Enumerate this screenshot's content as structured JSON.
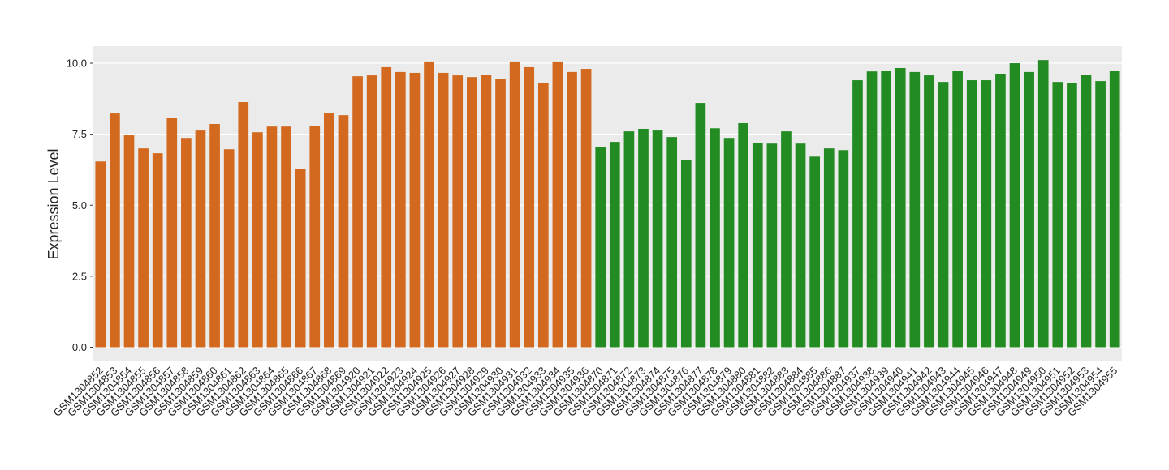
{
  "chart_data": {
    "type": "bar",
    "y_label": "Expression Level",
    "categories": [
      "GSM1304852",
      "GSM1304853",
      "GSM1304854",
      "GSM1304855",
      "GSM1304856",
      "GSM1304857",
      "GSM1304858",
      "GSM1304859",
      "GSM1304860",
      "GSM1304861",
      "GSM1304862",
      "GSM1304863",
      "GSM1304864",
      "GSM1304865",
      "GSM1304866",
      "GSM1304867",
      "GSM1304868",
      "GSM1304869",
      "GSM1304920",
      "GSM1304921",
      "GSM1304922",
      "GSM1304923",
      "GSM1304924",
      "GSM1304925",
      "GSM1304926",
      "GSM1304927",
      "GSM1304928",
      "GSM1304929",
      "GSM1304930",
      "GSM1304931",
      "GSM1304932",
      "GSM1304933",
      "GSM1304934",
      "GSM1304935",
      "GSM1304936",
      "GSM1304870",
      "GSM1304871",
      "GSM1304872",
      "GSM1304873",
      "GSM1304874",
      "GSM1304875",
      "GSM1304876",
      "GSM1304877",
      "GSM1304878",
      "GSM1304879",
      "GSM1304880",
      "GSM1304881",
      "GSM1304882",
      "GSM1304883",
      "GSM1304884",
      "GSM1304885",
      "GSM1304886",
      "GSM1304887",
      "GSM1304937",
      "GSM1304938",
      "GSM1304939",
      "GSM1304940",
      "GSM1304941",
      "GSM1304942",
      "GSM1304943",
      "GSM1304944",
      "GSM1304945",
      "GSM1304946",
      "GSM1304947",
      "GSM1304948",
      "GSM1304949",
      "GSM1304950",
      "GSM1304951",
      "GSM1304952",
      "GSM1304953",
      "GSM1304954",
      "GSM1304955"
    ],
    "values": [
      6.54,
      8.23,
      7.46,
      7.0,
      6.83,
      8.06,
      7.37,
      7.63,
      7.86,
      6.97,
      8.63,
      7.57,
      7.77,
      7.77,
      6.29,
      7.8,
      8.26,
      8.17,
      9.54,
      9.57,
      9.86,
      9.69,
      9.66,
      10.06,
      9.66,
      9.57,
      9.51,
      9.6,
      9.43,
      10.06,
      9.86,
      9.31,
      10.06,
      9.69,
      9.8,
      7.06,
      7.23,
      7.6,
      7.69,
      7.63,
      7.4,
      6.6,
      8.6,
      7.71,
      7.37,
      7.89,
      7.2,
      7.17,
      7.6,
      7.17,
      6.71,
      7.0,
      6.94,
      9.4,
      9.71,
      9.74,
      9.83,
      9.69,
      9.57,
      9.34,
      9.74,
      9.4,
      9.4,
      9.63,
      10.0,
      9.69,
      10.11,
      9.34,
      9.29,
      9.6,
      9.37,
      9.74
    ],
    "colors": [
      "#d2691e",
      "#d2691e",
      "#d2691e",
      "#d2691e",
      "#d2691e",
      "#d2691e",
      "#d2691e",
      "#d2691e",
      "#d2691e",
      "#d2691e",
      "#d2691e",
      "#d2691e",
      "#d2691e",
      "#d2691e",
      "#d2691e",
      "#d2691e",
      "#d2691e",
      "#d2691e",
      "#d2691e",
      "#d2691e",
      "#d2691e",
      "#d2691e",
      "#d2691e",
      "#d2691e",
      "#d2691e",
      "#d2691e",
      "#d2691e",
      "#d2691e",
      "#d2691e",
      "#d2691e",
      "#d2691e",
      "#d2691e",
      "#d2691e",
      "#d2691e",
      "#d2691e",
      "#228b22",
      "#228b22",
      "#228b22",
      "#228b22",
      "#228b22",
      "#228b22",
      "#228b22",
      "#228b22",
      "#228b22",
      "#228b22",
      "#228b22",
      "#228b22",
      "#228b22",
      "#228b22",
      "#228b22",
      "#228b22",
      "#228b22",
      "#228b22",
      "#228b22",
      "#228b22",
      "#228b22",
      "#228b22",
      "#228b22",
      "#228b22",
      "#228b22",
      "#228b22",
      "#228b22",
      "#228b22",
      "#228b22",
      "#228b22",
      "#228b22",
      "#228b22",
      "#228b22",
      "#228b22",
      "#228b22",
      "#228b22",
      "#228b22"
    ],
    "ylim": [
      -0.5,
      10.6
    ],
    "yticks": [
      {
        "value": 0,
        "label": "0.0"
      },
      {
        "value": 2.5,
        "label": "2.5"
      },
      {
        "value": 5,
        "label": "5.0"
      },
      {
        "value": 7.5,
        "label": "7.5"
      },
      {
        "value": 10,
        "label": "10.0"
      }
    ],
    "grid": true
  }
}
